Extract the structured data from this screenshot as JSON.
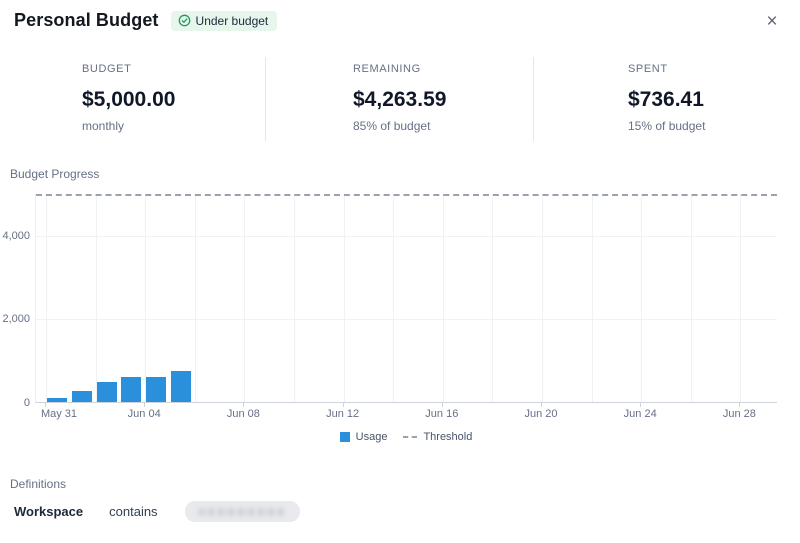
{
  "window": {
    "close_label": "×"
  },
  "header": {
    "title": "Personal Budget",
    "status_badge": {
      "icon": "check-circle-icon",
      "label": "Under budget",
      "bg_color": "#e7f5ed",
      "icon_color": "#1f9d61"
    }
  },
  "stats": [
    {
      "label": "BUDGET",
      "value": "$5,000.00",
      "sub": "monthly"
    },
    {
      "label": "REMAINING",
      "value": "$4,263.59",
      "sub": "85% of budget"
    },
    {
      "label": "SPENT",
      "value": "$736.41",
      "sub": "15% of budget"
    }
  ],
  "chart": {
    "section_title": "Budget Progress",
    "legend_usage": "Usage",
    "legend_threshold": "Threshold"
  },
  "chart_data": {
    "type": "bar",
    "title": "Budget Progress",
    "x": [
      "May 31",
      "Jun 01",
      "Jun 02",
      "Jun 03",
      "Jun 04",
      "Jun 05"
    ],
    "series": [
      {
        "name": "Usage",
        "values": [
          100,
          265,
          480,
          600,
          610,
          736
        ]
      }
    ],
    "threshold": {
      "name": "Threshold",
      "value": 5000
    },
    "x_tick_days": [
      0,
      4,
      8,
      12,
      16,
      20,
      24,
      28
    ],
    "x_tick_labels": [
      "May 31",
      "Jun 04",
      "Jun 08",
      "Jun 12",
      "Jun 16",
      "Jun 20",
      "Jun 24",
      "Jun 28"
    ],
    "x_total_days": 30,
    "y_ticks": [
      {
        "value": 0,
        "label": "0"
      },
      {
        "value": 2000,
        "label": "2,000"
      },
      {
        "value": 4000,
        "label": "4,000"
      }
    ],
    "ylim": [
      0,
      5000
    ],
    "grid": true,
    "legend_position": "bottom",
    "bar_color": "#2b90db",
    "threshold_color": "#9aa2ae"
  },
  "definitions": {
    "section_title": "Definitions",
    "rows": [
      {
        "field": "Workspace",
        "operator": "contains",
        "value_obscured": true
      }
    ]
  }
}
